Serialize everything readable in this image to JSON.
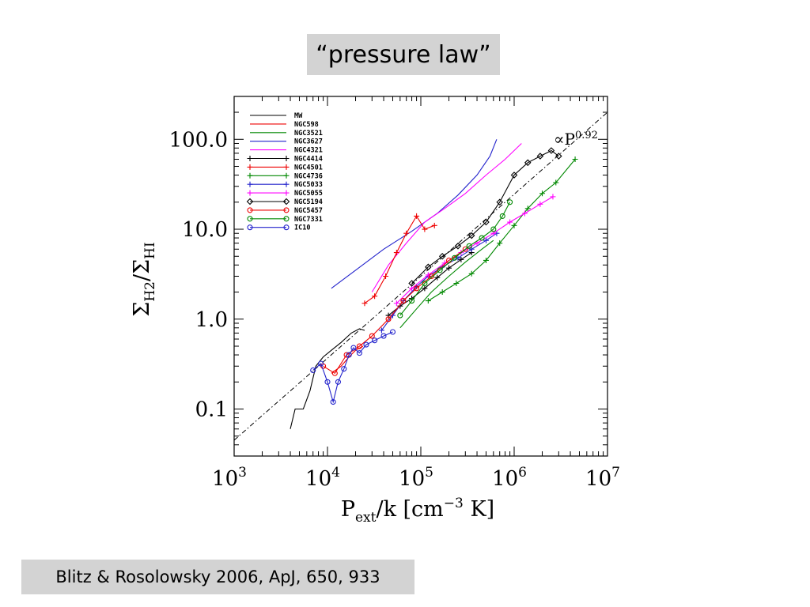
{
  "slide": {
    "title": "“pressure law”",
    "citation": "Blitz & Rosolowsky 2006, ApJ, 650, 933"
  },
  "chart_data": {
    "type": "line",
    "title": "",
    "xlabel": {
      "main": "P",
      "sub": "ext",
      "rest": "/k [cm",
      "unit_exp": "−3",
      "tail": " K]"
    },
    "ylabel": {
      "main": "Σ",
      "sub": "H2",
      "mid": "/Σ",
      "sub2": "HI"
    },
    "xscale": "log",
    "yscale": "log",
    "xlim": [
      1000,
      10000000
    ],
    "ylim": [
      0.03,
      300
    ],
    "x_ticks": [
      {
        "value": 1000,
        "base": "10",
        "exp": "3"
      },
      {
        "value": 10000,
        "base": "10",
        "exp": "4"
      },
      {
        "value": 100000,
        "base": "10",
        "exp": "5"
      },
      {
        "value": 1000000,
        "base": "10",
        "exp": "6"
      },
      {
        "value": 10000000,
        "base": "10",
        "exp": "7"
      }
    ],
    "y_ticks": [
      {
        "value": 0.1,
        "label": "0.1"
      },
      {
        "value": 1,
        "label": "1.0"
      },
      {
        "value": 10,
        "label": "10.0"
      },
      {
        "value": 100,
        "label": "100.0"
      }
    ],
    "grid": false,
    "legend_position": "top-left",
    "fit_line": {
      "label_prefix": "∝P",
      "label_exp": "0.92",
      "points": [
        [
          1000,
          0.045
        ],
        [
          10000000,
          200
        ]
      ]
    },
    "series": [
      {
        "name": "MW",
        "color": "#000000",
        "marker": "none",
        "x": [
          4000,
          4500,
          5500,
          6500,
          7500,
          9000,
          11000,
          14000,
          18000,
          22000,
          25000
        ],
        "y": [
          0.06,
          0.1,
          0.1,
          0.16,
          0.3,
          0.38,
          0.45,
          0.55,
          0.7,
          0.78,
          0.75
        ]
      },
      {
        "name": "NGC598",
        "color": "#ee0000",
        "marker": "none",
        "x": [
          11000,
          14000,
          17000,
          20000,
          24000
        ],
        "y": [
          0.25,
          0.3,
          0.38,
          0.45,
          0.5
        ]
      },
      {
        "name": "NGC3521",
        "color": "#008800",
        "marker": "none",
        "x": [
          60000,
          90000,
          130000,
          200000,
          300000,
          450000,
          600000
        ],
        "y": [
          0.8,
          1.3,
          2,
          3,
          4.3,
          6,
          7.5
        ]
      },
      {
        "name": "NGC3627",
        "color": "#2222cc",
        "marker": "none",
        "x": [
          11000,
          20000,
          40000,
          80000,
          150000,
          250000,
          400000,
          550000,
          650000
        ],
        "y": [
          2.2,
          3.5,
          6,
          9.5,
          15,
          24,
          40,
          65,
          100
        ]
      },
      {
        "name": "NGC4321",
        "color": "#ff00ff",
        "marker": "none",
        "x": [
          30000,
          45000,
          70000,
          110000,
          180000,
          300000,
          500000,
          800000,
          1200000
        ],
        "y": [
          2,
          4,
          7,
          12,
          17,
          25,
          40,
          60,
          90
        ]
      },
      {
        "name": "NGC4414",
        "color": "#000000",
        "marker": "plus",
        "x": [
          45000,
          60000,
          80000,
          110000,
          150000,
          200000,
          270000,
          350000
        ],
        "y": [
          1.1,
          1.4,
          1.7,
          2.2,
          2.9,
          3.7,
          4.6,
          5.5
        ]
      },
      {
        "name": "NGC4501",
        "color": "#ee0000",
        "marker": "plus",
        "x": [
          25000,
          32000,
          42000,
          55000,
          70000,
          90000,
          110000,
          140000
        ],
        "y": [
          1.5,
          1.8,
          3,
          5.5,
          9,
          14,
          10,
          11
        ]
      },
      {
        "name": "NGC4736",
        "color": "#008800",
        "marker": "plus",
        "x": [
          120000,
          170000,
          240000,
          350000,
          500000,
          700000,
          1000000,
          1400000,
          2000000,
          2800000,
          4500000
        ],
        "y": [
          1.6,
          2,
          2.5,
          3.2,
          4.5,
          7,
          11,
          17,
          25,
          33,
          60
        ]
      },
      {
        "name": "NGC5033",
        "color": "#2222cc",
        "marker": "plus",
        "x": [
          38000,
          50000,
          65000,
          90000,
          120000,
          170000,
          250000,
          350000,
          500000,
          650000
        ],
        "y": [
          0.75,
          1.1,
          1.6,
          2.3,
          3,
          3.8,
          4.8,
          6,
          7.5,
          9
        ]
      },
      {
        "name": "NGC5055",
        "color": "#ff00ff",
        "marker": "plus",
        "x": [
          55000,
          80000,
          120000,
          180000,
          270000,
          400000,
          600000,
          900000,
          1300000,
          1900000,
          2600000
        ],
        "y": [
          1.5,
          2.2,
          3.1,
          4.2,
          5.5,
          7,
          9,
          12,
          15,
          19,
          23
        ]
      },
      {
        "name": "NGC5194",
        "color": "#000000",
        "marker": "diamond",
        "x": [
          80000,
          120000,
          170000,
          250000,
          350000,
          500000,
          700000,
          1000000,
          1400000,
          1900000,
          2500000,
          3000000
        ],
        "y": [
          2.5,
          3.8,
          5,
          6.5,
          8.5,
          12,
          20,
          40,
          55,
          65,
          75,
          65
        ]
      },
      {
        "name": "NGC5457",
        "color": "#ee0000",
        "marker": "circle",
        "x": [
          9000,
          12000,
          16000,
          22000,
          30000,
          45000,
          65000,
          90000,
          130000,
          200000,
          300000
        ],
        "y": [
          0.3,
          0.25,
          0.4,
          0.5,
          0.65,
          1,
          1.6,
          2.2,
          3,
          4.5,
          6
        ]
      },
      {
        "name": "NGC7331",
        "color": "#008800",
        "marker": "circle",
        "x": [
          60000,
          80000,
          110000,
          160000,
          230000,
          330000,
          450000,
          600000,
          750000,
          900000
        ],
        "y": [
          1.1,
          1.6,
          2.5,
          3.5,
          4.8,
          6.5,
          8,
          10,
          14,
          20
        ]
      },
      {
        "name": "IC10",
        "color": "#2222cc",
        "marker": "circle",
        "x": [
          7000,
          8500,
          10000,
          11500,
          13000,
          15000,
          17000,
          19000,
          22000,
          26000,
          32000,
          40000,
          50000
        ],
        "y": [
          0.27,
          0.32,
          0.2,
          0.12,
          0.2,
          0.28,
          0.4,
          0.48,
          0.42,
          0.52,
          0.58,
          0.65,
          0.72
        ]
      }
    ]
  }
}
